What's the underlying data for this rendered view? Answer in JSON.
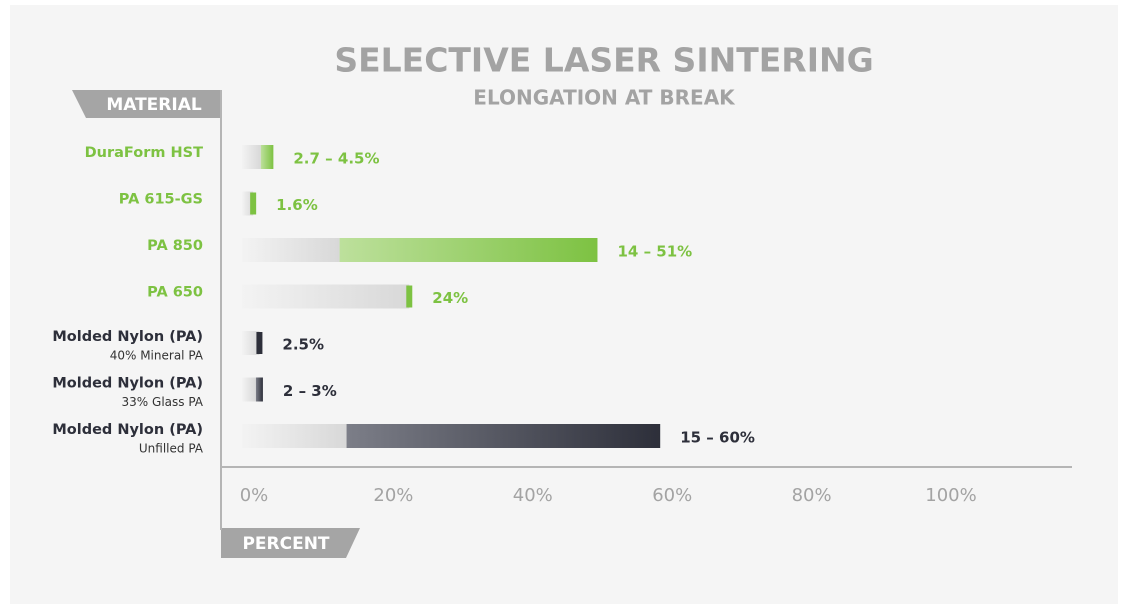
{
  "chart_data": {
    "type": "range-bar",
    "title": "SELECTIVE LASER SINTERING",
    "subtitle": "ELONGATION AT BREAK",
    "y_axis_label": "MATERIAL",
    "x_axis_label": "PERCENT",
    "categories": [
      "DuraForm HST",
      "PA 615-GS",
      "PA 850",
      "PA 650",
      "Molded Nylon (PA)",
      "Molded Nylon (PA)",
      "Molded Nylon (PA)"
    ],
    "category_notes": [
      null,
      null,
      null,
      null,
      "40% Mineral PA",
      "33% Glass PA",
      "Unfilled PA"
    ],
    "low": [
      2.7,
      null,
      14,
      null,
      null,
      2,
      15
    ],
    "values": [
      4.5,
      1.6,
      51,
      24,
      2.5,
      3,
      60
    ],
    "value_labels": [
      "2.7 – 4.5%",
      "1.6%",
      "14 – 51%",
      "24%",
      "2.5%",
      "2 – 3%",
      "15 – 60%"
    ],
    "colors": [
      "#7dc242",
      "#7dc242",
      "#7dc242",
      "#7dc242",
      "#2d2f3a",
      "#2d2f3a",
      "#2d2f3a"
    ],
    "xlim": [
      0,
      100
    ],
    "xticks": [
      {
        "value": 0,
        "label": "0%"
      },
      {
        "value": 20,
        "label": "20%"
      },
      {
        "value": 40,
        "label": "40%"
      },
      {
        "value": 60,
        "label": "60%"
      },
      {
        "value": 80,
        "label": "80%"
      },
      {
        "value": 100,
        "label": "100%"
      }
    ]
  }
}
